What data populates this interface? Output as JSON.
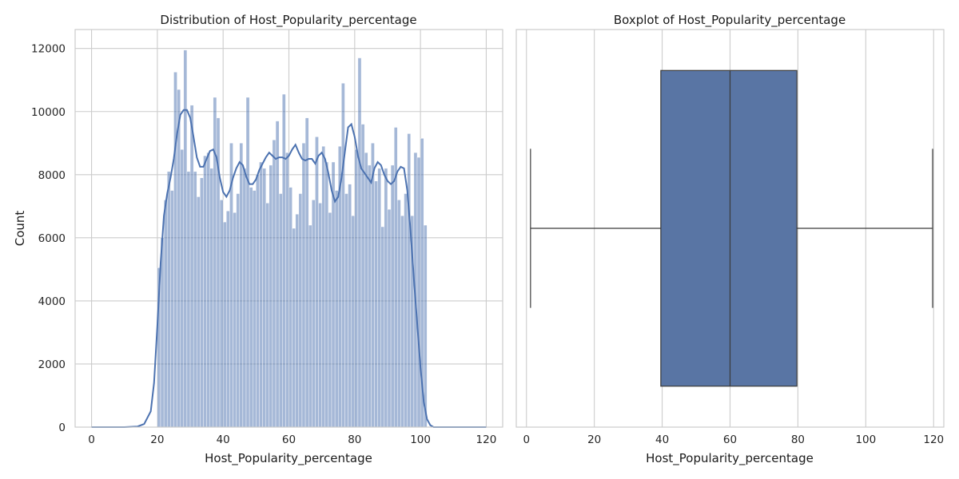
{
  "chart_data": [
    {
      "type": "histogram",
      "title": "Distribution of Host_Popularity_percentage",
      "xlabel": "Host_Popularity_percentage",
      "ylabel": "Count",
      "xlim": [
        -5,
        125
      ],
      "ylim": [
        0,
        12600
      ],
      "xticks": [
        0,
        20,
        40,
        60,
        80,
        100,
        120
      ],
      "yticks": [
        0,
        2000,
        4000,
        6000,
        8000,
        10000,
        12000
      ],
      "grid": true,
      "bar_color": "#4c72b0",
      "bar_opacity": 0.5,
      "kde_color": "#4c72b0",
      "bins": {
        "start": 20,
        "width": 1,
        "counts": [
          5050,
          6000,
          7200,
          8100,
          7500,
          11250,
          10700,
          8800,
          11950,
          8100,
          10200,
          8100,
          7300,
          7900,
          8600,
          8700,
          8200,
          10450,
          9800,
          7200,
          6500,
          6850,
          9000,
          6800,
          7400,
          9000,
          8200,
          10450,
          7600,
          7500,
          8000,
          8400,
          8200,
          7100,
          8300,
          9100,
          9700,
          7400,
          10550,
          8700,
          7600,
          6300,
          6750,
          7400,
          9000,
          9800,
          6400,
          7200,
          9200,
          7100,
          8900,
          8400,
          6800,
          8400,
          7500,
          8900,
          10900,
          7400,
          7700,
          6700,
          8800,
          11700,
          9600,
          8700,
          8300,
          9000,
          7800,
          8200,
          6350,
          8200,
          6900,
          8300,
          9500,
          7200,
          6700,
          7400,
          9300,
          6700,
          8700,
          8550,
          9150,
          6400
        ]
      },
      "kde": {
        "x": [
          0,
          5,
          10,
          14,
          16,
          18,
          19,
          20,
          21,
          22,
          23,
          24,
          25,
          26,
          27,
          28,
          29,
          30,
          31,
          32,
          33,
          34,
          35,
          36,
          37,
          38,
          39,
          40,
          41,
          42,
          43,
          44,
          45,
          46,
          47,
          48,
          49,
          50,
          51,
          52,
          53,
          54,
          55,
          56,
          57,
          58,
          59,
          60,
          61,
          62,
          63,
          64,
          65,
          66,
          67,
          68,
          69,
          70,
          71,
          72,
          73,
          74,
          75,
          76,
          77,
          78,
          79,
          80,
          81,
          82,
          83,
          84,
          85,
          86,
          87,
          88,
          89,
          90,
          91,
          92,
          93,
          94,
          95,
          96,
          97,
          98,
          99,
          100,
          101,
          102,
          103,
          104,
          106,
          110,
          115,
          120
        ],
        "y": [
          0,
          0,
          0,
          20,
          100,
          500,
          1400,
          3200,
          5200,
          6700,
          7400,
          7900,
          8500,
          9300,
          9900,
          10050,
          10050,
          9800,
          9200,
          8550,
          8250,
          8250,
          8500,
          8750,
          8800,
          8550,
          7900,
          7450,
          7300,
          7500,
          7900,
          8200,
          8400,
          8300,
          7950,
          7700,
          7700,
          7850,
          8150,
          8350,
          8550,
          8700,
          8600,
          8500,
          8550,
          8550,
          8500,
          8600,
          8800,
          8950,
          8700,
          8500,
          8450,
          8500,
          8500,
          8350,
          8600,
          8700,
          8500,
          8050,
          7500,
          7150,
          7300,
          7900,
          8700,
          9500,
          9600,
          9200,
          8600,
          8200,
          8050,
          7900,
          7750,
          8200,
          8400,
          8300,
          8000,
          7800,
          7700,
          7800,
          8100,
          8250,
          8200,
          7500,
          6200,
          4700,
          3300,
          1900,
          800,
          250,
          60,
          0,
          0,
          0,
          0,
          0
        ]
      }
    },
    {
      "type": "boxplot",
      "title": "Boxplot of Host_Popularity_percentage",
      "xlabel": "Host_Popularity_percentage",
      "xlim": [
        -3,
        123
      ],
      "xticks": [
        0,
        20,
        40,
        60,
        80,
        100,
        120
      ],
      "grid": true,
      "box_color": "#5975a4",
      "line_color": "#3a3a3a",
      "stats": {
        "whisker_low": 1.2,
        "q1": 39.6,
        "median": 60.0,
        "q3": 79.7,
        "whisker_high": 119.7
      }
    }
  ]
}
